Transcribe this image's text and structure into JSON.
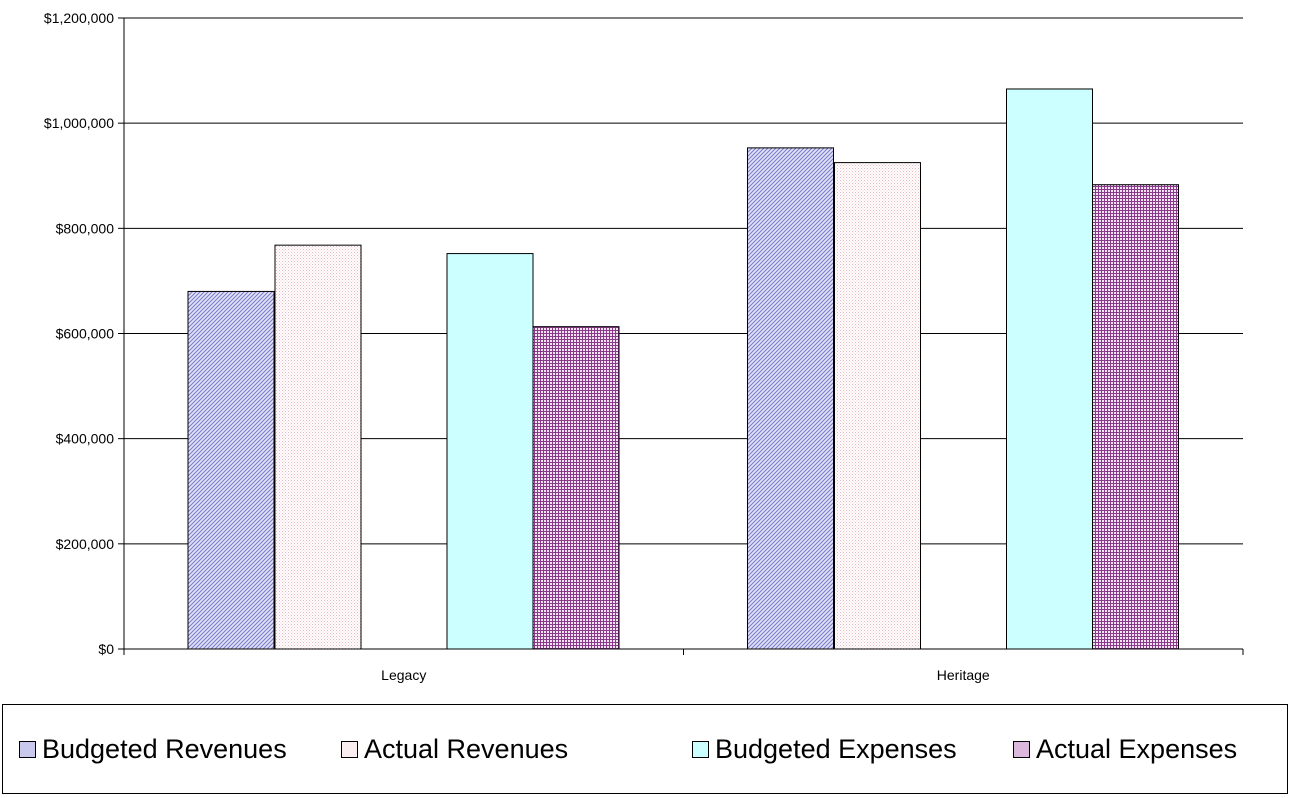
{
  "chart_data": {
    "type": "bar",
    "categories": [
      "Legacy",
      "Heritage"
    ],
    "series": [
      {
        "name": "Budgeted Revenues",
        "values": [
          680000,
          953000
        ],
        "color": "#c9c9ee",
        "pattern": "diagonal"
      },
      {
        "name": "Actual Revenues",
        "values": [
          768000,
          925000
        ],
        "color": "#fbeef0",
        "pattern": "dots"
      },
      {
        "name": "Budgeted Expenses",
        "values": [
          752000,
          1065000
        ],
        "color": "#ccffff",
        "pattern": "solid"
      },
      {
        "name": "Actual Expenses",
        "values": [
          613000,
          883000
        ],
        "color": "#dcb8dc",
        "pattern": "grid"
      }
    ],
    "ylim": [
      0,
      1200000
    ],
    "yticks": [
      "$0",
      "$200,000",
      "$400,000",
      "$600,000",
      "$800,000",
      "$1,000,000",
      "$1,200,000"
    ],
    "grid": true,
    "legend_position": "bottom",
    "title": "",
    "xlabel": "",
    "ylabel": ""
  }
}
